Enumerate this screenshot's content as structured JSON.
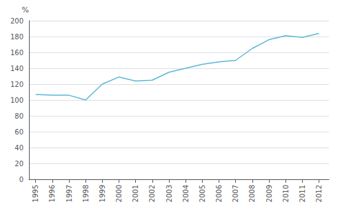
{
  "chart_data": {
    "type": "line",
    "x": [
      1995,
      1996,
      1997,
      1998,
      1999,
      2000,
      2001,
      2002,
      2003,
      2004,
      2005,
      2006,
      2007,
      2008,
      2009,
      2010,
      2011,
      2012
    ],
    "values": [
      107,
      106,
      106,
      100,
      120,
      129,
      124,
      125,
      135,
      140,
      145,
      148,
      150,
      165,
      176,
      181,
      179,
      184
    ],
    "color": "#5BB8D4",
    "ylabel": "%",
    "xlim": [
      1994.6,
      2012.6
    ],
    "xticks": [
      1995,
      1996,
      1997,
      1998,
      1999,
      2000,
      2001,
      2002,
      2003,
      2004,
      2005,
      2006,
      2007,
      2008,
      2009,
      2010,
      2011,
      2012
    ],
    "ylim": [
      0,
      200
    ],
    "yticks": [
      0,
      20,
      40,
      60,
      80,
      100,
      120,
      140,
      160,
      180,
      200
    ],
    "grid": true
  }
}
